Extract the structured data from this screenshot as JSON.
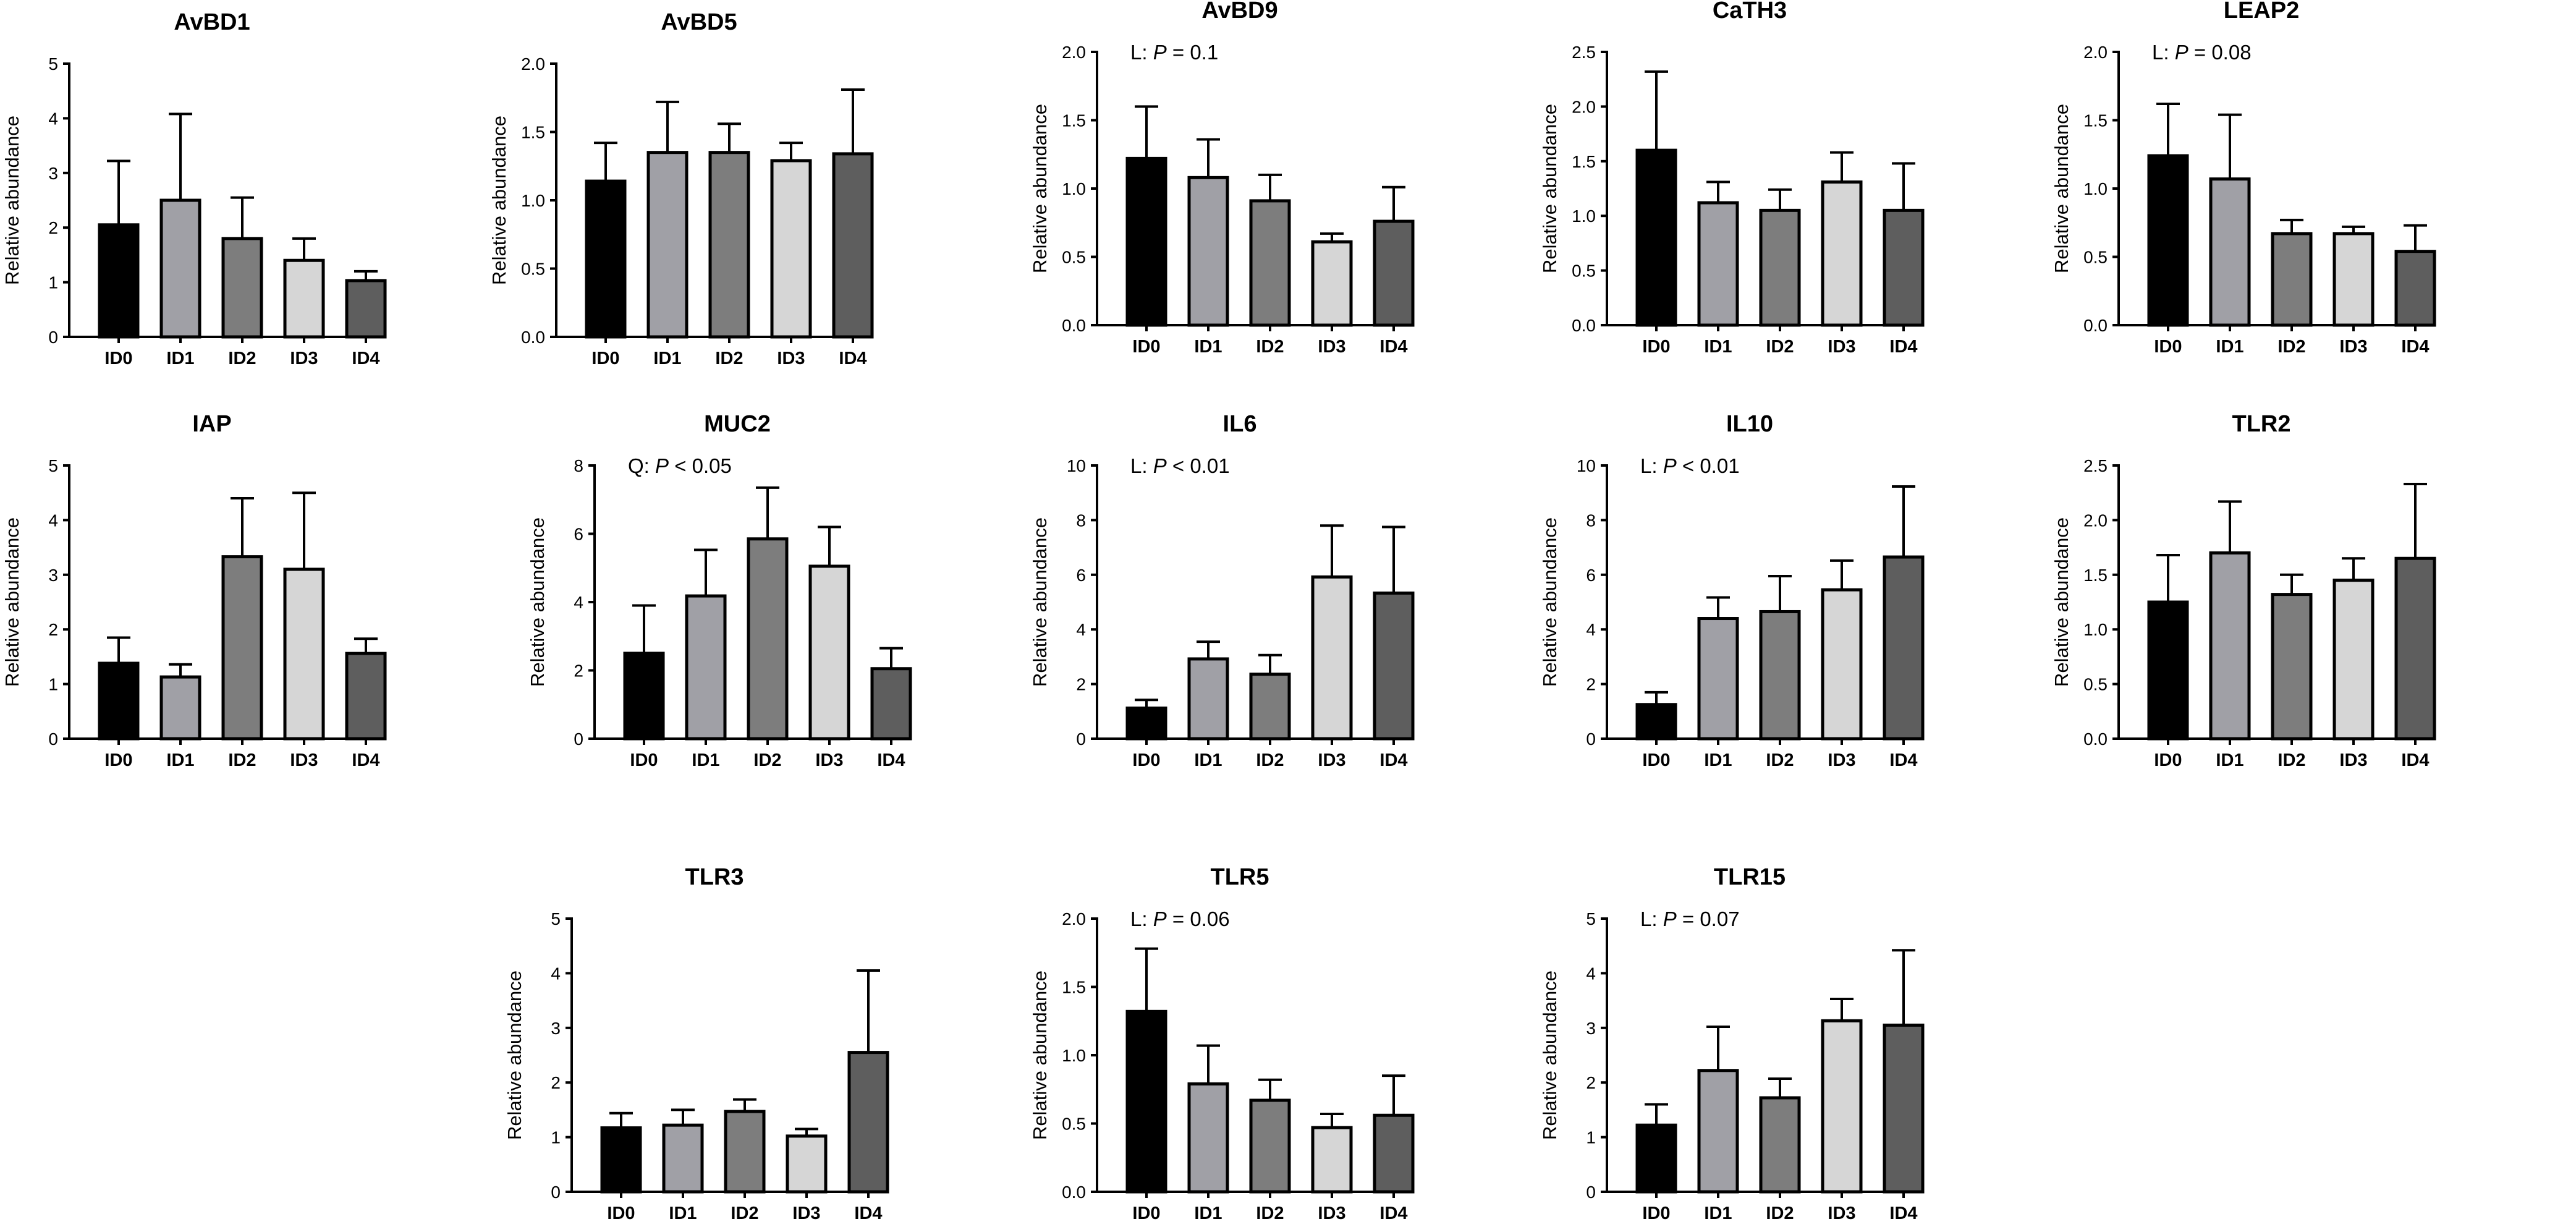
{
  "figure": {
    "background": "#ffffff"
  },
  "style": {
    "bar_colors": [
      "#000000",
      "#a0a0a6",
      "#7d7d7d",
      "#d6d6d6",
      "#5e5e5e"
    ],
    "stroke_color": "#000000"
  },
  "chart_data": [
    {
      "id": "AvBD1",
      "type": "bar",
      "title": "AvBD1",
      "ylabel": "Relative abundance",
      "categories": [
        "ID0",
        "ID1",
        "ID2",
        "ID3",
        "ID4"
      ],
      "values": [
        2.05,
        2.5,
        1.8,
        1.4,
        1.03
      ],
      "errors": [
        1.17,
        1.58,
        0.75,
        0.4,
        0.17
      ],
      "ylim": [
        0,
        5
      ],
      "yticks": [
        "0",
        "1",
        "2",
        "3",
        "4",
        "5"
      ],
      "annotation": null
    },
    {
      "id": "AvBD5",
      "type": "bar",
      "title": "AvBD5",
      "ylabel": "Relative abundance",
      "categories": [
        "ID0",
        "ID1",
        "ID2",
        "ID3",
        "ID4"
      ],
      "values": [
        1.14,
        1.35,
        1.35,
        1.29,
        1.34
      ],
      "errors": [
        0.28,
        0.37,
        0.21,
        0.13,
        0.47
      ],
      "ylim": [
        0,
        2
      ],
      "yticks": [
        "0.0",
        "0.5",
        "1.0",
        "1.5",
        "2.0"
      ],
      "annotation": null
    },
    {
      "id": "AvBD9",
      "type": "bar",
      "title": "AvBD9",
      "ylabel": "Relative abundance",
      "categories": [
        "ID0",
        "ID1",
        "ID2",
        "ID3",
        "ID4"
      ],
      "values": [
        1.22,
        1.08,
        0.91,
        0.61,
        0.76
      ],
      "errors": [
        0.38,
        0.28,
        0.19,
        0.06,
        0.25
      ],
      "ylim": [
        0,
        2
      ],
      "yticks": [
        "0.0",
        "0.5",
        "1.0",
        "1.5",
        "2.0"
      ],
      "annotation": {
        "prefix": "L: ",
        "p": "P",
        "suffix": " = 0.1"
      }
    },
    {
      "id": "CaTH3",
      "type": "bar",
      "title": "CaTH3",
      "ylabel": "Relative abundance",
      "categories": [
        "ID0",
        "ID1",
        "ID2",
        "ID3",
        "ID4"
      ],
      "values": [
        1.6,
        1.12,
        1.05,
        1.31,
        1.05
      ],
      "errors": [
        0.72,
        0.19,
        0.19,
        0.27,
        0.43
      ],
      "ylim": [
        0,
        2.5
      ],
      "yticks": [
        "0.0",
        "0.5",
        "1.0",
        "1.5",
        "2.0",
        "2.5"
      ],
      "annotation": null
    },
    {
      "id": "LEAP2",
      "type": "bar",
      "title": "LEAP2",
      "ylabel": "Relative abundance",
      "categories": [
        "ID0",
        "ID1",
        "ID2",
        "ID3",
        "ID4"
      ],
      "values": [
        1.24,
        1.07,
        0.67,
        0.67,
        0.54
      ],
      "errors": [
        0.38,
        0.47,
        0.1,
        0.05,
        0.19
      ],
      "ylim": [
        0,
        2
      ],
      "yticks": [
        "0.0",
        "0.5",
        "1.0",
        "1.5",
        "2.0"
      ],
      "annotation": {
        "prefix": "L: ",
        "p": "P",
        "suffix": " = 0.08"
      }
    },
    {
      "id": "IAP",
      "type": "bar",
      "title": "IAP",
      "ylabel": "Relative abundance",
      "categories": [
        "ID0",
        "ID1",
        "ID2",
        "ID3",
        "ID4"
      ],
      "values": [
        1.38,
        1.13,
        3.33,
        3.1,
        1.56
      ],
      "errors": [
        0.47,
        0.23,
        1.07,
        1.4,
        0.27
      ],
      "ylim": [
        0,
        5
      ],
      "yticks": [
        "0",
        "1",
        "2",
        "3",
        "4",
        "5"
      ],
      "annotation": null
    },
    {
      "id": "MUC2",
      "type": "bar",
      "title": "MUC2",
      "ylabel": "Relative abundance",
      "categories": [
        "ID0",
        "ID1",
        "ID2",
        "ID3",
        "ID4"
      ],
      "values": [
        2.5,
        4.18,
        5.85,
        5.05,
        2.05
      ],
      "errors": [
        1.4,
        1.35,
        1.5,
        1.15,
        0.6
      ],
      "ylim": [
        0,
        8
      ],
      "yticks": [
        "0",
        "2",
        "4",
        "6",
        "8"
      ],
      "annotation": {
        "prefix": "Q: ",
        "p": "P",
        "suffix": " < 0.05"
      }
    },
    {
      "id": "IL6",
      "type": "bar",
      "title": "IL6",
      "ylabel": "Relative abundance",
      "categories": [
        "ID0",
        "ID1",
        "ID2",
        "ID3",
        "ID4"
      ],
      "values": [
        1.12,
        2.92,
        2.36,
        5.92,
        5.33
      ],
      "errors": [
        0.3,
        0.63,
        0.7,
        1.88,
        2.42
      ],
      "ylim": [
        0,
        10
      ],
      "yticks": [
        "0",
        "2",
        "4",
        "6",
        "8",
        "10"
      ],
      "annotation": {
        "prefix": "L: ",
        "p": "P",
        "suffix": " < 0.01"
      }
    },
    {
      "id": "IL10",
      "type": "bar",
      "title": "IL10",
      "ylabel": "Relative abundance",
      "categories": [
        "ID0",
        "ID1",
        "ID2",
        "ID3",
        "ID4"
      ],
      "values": [
        1.25,
        4.4,
        4.65,
        5.45,
        6.65
      ],
      "errors": [
        0.45,
        0.77,
        1.3,
        1.07,
        2.58
      ],
      "ylim": [
        0,
        10
      ],
      "yticks": [
        "0",
        "2",
        "4",
        "6",
        "8",
        "10"
      ],
      "annotation": {
        "prefix": "L: ",
        "p": "P",
        "suffix": " < 0.01"
      }
    },
    {
      "id": "TLR2",
      "type": "bar",
      "title": "TLR2",
      "ylabel": "Relative abundance",
      "categories": [
        "ID0",
        "ID1",
        "ID2",
        "ID3",
        "ID4"
      ],
      "values": [
        1.25,
        1.7,
        1.32,
        1.45,
        1.65
      ],
      "errors": [
        0.43,
        0.47,
        0.18,
        0.2,
        0.68
      ],
      "ylim": [
        0,
        2.5
      ],
      "yticks": [
        "0.0",
        "0.5",
        "1.0",
        "1.5",
        "2.0",
        "2.5"
      ],
      "annotation": null
    },
    {
      "id": "TLR3",
      "type": "bar",
      "title": "TLR3",
      "ylabel": "Relative abundance",
      "categories": [
        "ID0",
        "ID1",
        "ID2",
        "ID3",
        "ID4"
      ],
      "values": [
        1.17,
        1.22,
        1.47,
        1.02,
        2.55
      ],
      "errors": [
        0.27,
        0.28,
        0.22,
        0.13,
        1.5
      ],
      "ylim": [
        0,
        5
      ],
      "yticks": [
        "0",
        "1",
        "2",
        "3",
        "4",
        "5"
      ],
      "annotation": null
    },
    {
      "id": "TLR5",
      "type": "bar",
      "title": "TLR5",
      "ylabel": "Relative abundance",
      "categories": [
        "ID0",
        "ID1",
        "ID2",
        "ID3",
        "ID4"
      ],
      "values": [
        1.32,
        0.79,
        0.67,
        0.47,
        0.56
      ],
      "errors": [
        0.46,
        0.28,
        0.15,
        0.1,
        0.29
      ],
      "ylim": [
        0,
        2
      ],
      "yticks": [
        "0.0",
        "0.5",
        "1.0",
        "1.5",
        "2.0"
      ],
      "annotation": {
        "prefix": "L: ",
        "p": "P",
        "suffix": " = 0.06"
      }
    },
    {
      "id": "TLR15",
      "type": "bar",
      "title": "TLR15",
      "ylabel": "Relative abundance",
      "categories": [
        "ID0",
        "ID1",
        "ID2",
        "ID3",
        "ID4"
      ],
      "values": [
        1.22,
        2.22,
        1.72,
        3.13,
        3.05
      ],
      "errors": [
        0.38,
        0.8,
        0.35,
        0.4,
        1.37
      ],
      "ylim": [
        0,
        5
      ],
      "yticks": [
        "0",
        "1",
        "2",
        "3",
        "4",
        "5"
      ],
      "annotation": {
        "prefix": "L: ",
        "p": "P",
        "suffix": " = 0.07"
      }
    }
  ]
}
